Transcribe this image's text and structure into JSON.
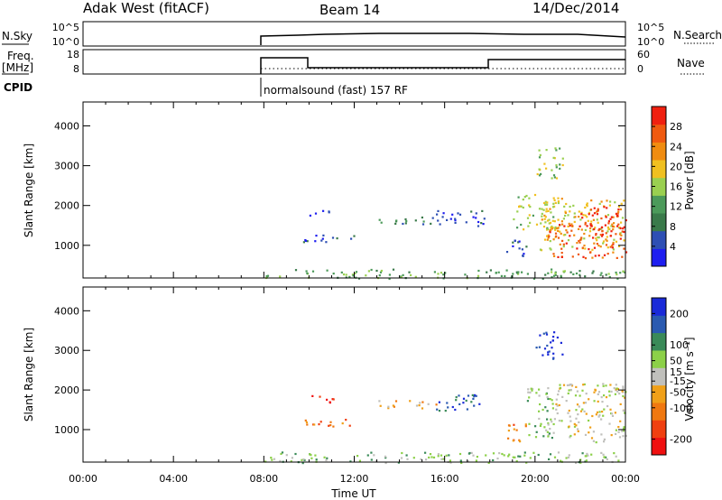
{
  "header": {
    "radar": "Adak West (fitACF)",
    "beam": "Beam 14",
    "date": "14/Dec/2014"
  },
  "strips": {
    "nsky": {
      "label": "N.Sky",
      "ticks": [
        "10^5",
        "10^0"
      ]
    },
    "nsearch": {
      "label": "N.Search",
      "ticks": [
        "10^5",
        "10^0"
      ]
    },
    "freq": {
      "label_line1": "Freq.",
      "label_line2": "[MHz]",
      "ticks": [
        "18",
        "8"
      ]
    },
    "nave": {
      "label": "Nave",
      "ticks": [
        "60",
        "0"
      ]
    },
    "cpid": {
      "label": "CPID",
      "text": "normalsound (fast) 157 RF"
    }
  },
  "colors": {
    "power": [
      "#1e1ef0",
      "#2e4fb4",
      "#3a7a4a",
      "#4c9a5a",
      "#9ad050",
      "#f0c020",
      "#f08c10",
      "#f05a10",
      "#f02010"
    ],
    "velocity": [
      "#1a2ad8",
      "#2a5ab0",
      "#3a8a58",
      "#8cd048",
      "#c0c0bc",
      "#f0a018",
      "#f07810",
      "#f04010",
      "#f01010"
    ]
  },
  "chart_data": [
    {
      "type": "heatmap",
      "panel": "power",
      "x": [
        "00:00",
        "04:00",
        "08:00",
        "12:00",
        "16:00",
        "20:00",
        "00:00"
      ],
      "xlabel": "Time UT",
      "ylabel": "Slant Range [km]",
      "ylim": [
        180,
        4600
      ],
      "yticks": [
        "1000",
        "2000",
        "3000",
        "4000"
      ],
      "colorbar": {
        "label": "Power [dB]",
        "range": [
          0,
          32
        ],
        "ticks": [
          "4",
          "8",
          "12",
          "16",
          "20",
          "24",
          "28"
        ]
      },
      "clusters": [
        {
          "t0": 8.0,
          "t1": 24.0,
          "r0": 180,
          "r1": 420,
          "level": 3
        },
        {
          "t0": 9.6,
          "t1": 12.0,
          "r0": 1100,
          "r1": 1300,
          "level": 1
        },
        {
          "t0": 10.0,
          "t1": 11.2,
          "r0": 1750,
          "r1": 1900,
          "level": 1
        },
        {
          "t0": 13.0,
          "t1": 15.6,
          "r0": 1550,
          "r1": 1750,
          "level": 2
        },
        {
          "t0": 15.6,
          "t1": 17.8,
          "r0": 1500,
          "r1": 1900,
          "level": 1
        },
        {
          "t0": 18.7,
          "t1": 19.6,
          "r0": 700,
          "r1": 1200,
          "level": 1
        },
        {
          "t0": 19.0,
          "t1": 21.0,
          "r0": 1400,
          "r1": 2300,
          "level": 4
        },
        {
          "t0": 20.2,
          "t1": 24.0,
          "r0": 900,
          "r1": 2200,
          "level": 5
        },
        {
          "t0": 20.5,
          "t1": 24.0,
          "r0": 700,
          "r1": 1600,
          "level": 7
        },
        {
          "t0": 22.0,
          "t1": 24.0,
          "r0": 1200,
          "r1": 2000,
          "level": 8
        },
        {
          "t0": 20.0,
          "t1": 21.2,
          "r0": 2700,
          "r1": 3500,
          "level": 4
        }
      ]
    },
    {
      "type": "heatmap",
      "panel": "velocity",
      "x": [
        "00:00",
        "04:00",
        "08:00",
        "12:00",
        "16:00",
        "20:00",
        "00:00"
      ],
      "xlabel": "Time UT",
      "ylabel": "Slant Range [km]",
      "ylim": [
        180,
        4600
      ],
      "yticks": [
        "1000",
        "2000",
        "3000",
        "4000"
      ],
      "colorbar": {
        "label": "Velocity [m s⁻¹]",
        "range": [
          -250,
          250
        ],
        "ticks": [
          "200",
          "100",
          "50",
          "15",
          "-15",
          "-50",
          "-100",
          "-200"
        ]
      },
      "clusters": [
        {
          "t0": 8.0,
          "t1": 24.0,
          "r0": 180,
          "r1": 450,
          "level": 3
        },
        {
          "t0": 9.6,
          "t1": 12.0,
          "r0": 1100,
          "r1": 1300,
          "level": 6
        },
        {
          "t0": 10.0,
          "t1": 11.2,
          "r0": 1700,
          "r1": 1900,
          "level": 8
        },
        {
          "t0": 13.0,
          "t1": 15.6,
          "r0": 1550,
          "r1": 1750,
          "level": 5
        },
        {
          "t0": 15.6,
          "t1": 17.8,
          "r0": 1500,
          "r1": 1900,
          "level": 1
        },
        {
          "t0": 18.7,
          "t1": 19.6,
          "r0": 700,
          "r1": 1200,
          "level": 6
        },
        {
          "t0": 19.6,
          "t1": 20.8,
          "r0": 800,
          "r1": 2100,
          "level": 3
        },
        {
          "t0": 20.6,
          "t1": 24.0,
          "r0": 700,
          "r1": 2200,
          "level": 4
        },
        {
          "t0": 20.0,
          "t1": 21.2,
          "r0": 2800,
          "r1": 3500,
          "level": 0
        }
      ]
    }
  ]
}
